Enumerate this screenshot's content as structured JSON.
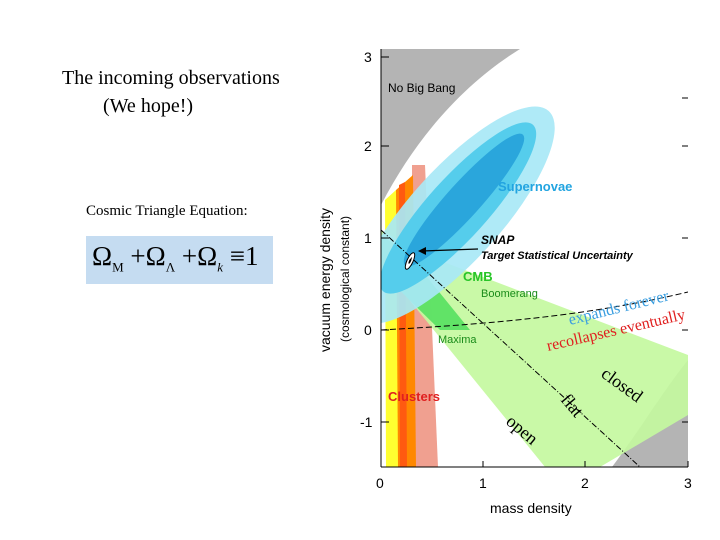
{
  "slide": {
    "title_line1": "The incoming observations",
    "title_line2": "(We hope!)",
    "triangle_label": "Cosmic Triangle Equation:",
    "equation_parts": {
      "omega": "Ω",
      "sub_m": "M",
      "plus": "+",
      "sub_lambda": "Λ",
      "sub_k": "k",
      "equiv": "≡",
      "one": "1"
    }
  },
  "chart_data": {
    "type": "contour",
    "xlabel": "mass density",
    "ylabel": "vacuum energy density",
    "ylabel2": "(cosmological constant)",
    "xlim": [
      0,
      3
    ],
    "ylim": [
      -1.5,
      3
    ],
    "x_ticks": [
      "0",
      "1",
      "2",
      "3"
    ],
    "y_ticks": [
      "-1",
      "0",
      "1",
      "2",
      "3"
    ],
    "regions": [
      "No Big Bang",
      "Supernovae",
      "CMB",
      "Boomerang",
      "Maxima",
      "Clusters"
    ],
    "annotations": {
      "snap": "SNAP",
      "snap_sub": "Target Statistical Uncertainty",
      "expands": "expands forever",
      "recollapses": "recollapses eventually",
      "closed": "closed",
      "flat": "flat",
      "open": "open"
    },
    "colors": {
      "no_big_bang": "#b4b4b4",
      "supernovae_outer": "#a8e8f6",
      "supernovae_mid": "#55cdec",
      "supernovae_inner": "#2aa6dc",
      "cmb_outer": "#c4f8a0",
      "cmb_inner": "#55e060",
      "clusters_red": "#f0a090",
      "clusters_orange": "#ff8800",
      "clusters_yellow": "#ffff30",
      "supernovae_text": "#22a4e0",
      "cmb_text": "#27c527",
      "clusters_text": "#e02020",
      "expands_text": "#3a9ee0",
      "recollapses_text": "#e02020"
    }
  }
}
